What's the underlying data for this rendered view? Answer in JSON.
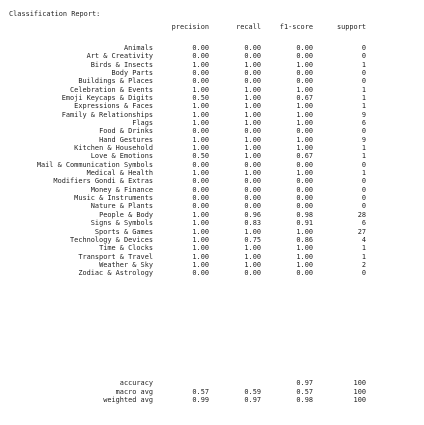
{
  "title": "Classification Report:",
  "columns": [
    "precision",
    "recall",
    "f1-score",
    "support"
  ],
  "rows": [
    {
      "label": "Animals",
      "precision": "0.00",
      "recall": "0.00",
      "f1": "0.00",
      "support": "0"
    },
    {
      "label": "Art & Creativity",
      "precision": "0.00",
      "recall": "0.00",
      "f1": "0.00",
      "support": "0"
    },
    {
      "label": "Birds & Insects",
      "precision": "1.00",
      "recall": "1.00",
      "f1": "1.00",
      "support": "1"
    },
    {
      "label": "Body Parts",
      "precision": "0.00",
      "recall": "0.00",
      "f1": "0.00",
      "support": "0"
    },
    {
      "label": "Buildings & Places",
      "precision": "0.00",
      "recall": "0.00",
      "f1": "0.00",
      "support": "0"
    },
    {
      "label": "Celebration & Events",
      "precision": "1.00",
      "recall": "1.00",
      "f1": "1.00",
      "support": "1"
    },
    {
      "label": "Emoji Keycaps & Digits",
      "precision": "0.50",
      "recall": "1.00",
      "f1": "0.67",
      "support": "1"
    },
    {
      "label": "Expressions & Faces",
      "precision": "1.00",
      "recall": "1.00",
      "f1": "1.00",
      "support": "1"
    },
    {
      "label": "Family & Relationships",
      "precision": "1.00",
      "recall": "1.00",
      "f1": "1.00",
      "support": "9"
    },
    {
      "label": "Flags",
      "precision": "1.00",
      "recall": "1.00",
      "f1": "1.00",
      "support": "6"
    },
    {
      "label": "Food & Drinks",
      "precision": "0.00",
      "recall": "0.00",
      "f1": "0.00",
      "support": "0"
    },
    {
      "label": "Hand Gestures",
      "precision": "1.00",
      "recall": "1.00",
      "f1": "1.00",
      "support": "9"
    },
    {
      "label": "Kitchen & Household",
      "precision": "1.00",
      "recall": "1.00",
      "f1": "1.00",
      "support": "1"
    },
    {
      "label": "Love & Emotions",
      "precision": "0.50",
      "recall": "1.00",
      "f1": "0.67",
      "support": "1"
    },
    {
      "label": "Mail & Communication Symbols",
      "precision": "0.00",
      "recall": "0.00",
      "f1": "0.00",
      "support": "0"
    },
    {
      "label": "Medical & Health",
      "precision": "1.00",
      "recall": "1.00",
      "f1": "1.00",
      "support": "1"
    },
    {
      "label": "Modifiers Gondi & Extras",
      "precision": "0.00",
      "recall": "0.00",
      "f1": "0.00",
      "support": "0"
    },
    {
      "label": "Money & Finance",
      "precision": "0.00",
      "recall": "0.00",
      "f1": "0.00",
      "support": "0"
    },
    {
      "label": "Music & Instruments",
      "precision": "0.00",
      "recall": "0.00",
      "f1": "0.00",
      "support": "0"
    },
    {
      "label": "Nature & Plants",
      "precision": "0.00",
      "recall": "0.00",
      "f1": "0.00",
      "support": "0"
    },
    {
      "label": "People & Body",
      "precision": "1.00",
      "recall": "0.96",
      "f1": "0.98",
      "support": "28"
    },
    {
      "label": "Signs & Symbols",
      "precision": "1.00",
      "recall": "0.83",
      "f1": "0.91",
      "support": "6"
    },
    {
      "label": "Sports & Games",
      "precision": "1.00",
      "recall": "1.00",
      "f1": "1.00",
      "support": "27"
    },
    {
      "label": "Technology & Devices",
      "precision": "1.00",
      "recall": "0.75",
      "f1": "0.86",
      "support": "4"
    },
    {
      "label": "Time & Clocks",
      "precision": "1.00",
      "recall": "1.00",
      "f1": "1.00",
      "support": "1"
    },
    {
      "label": "Transport & Travel",
      "precision": "1.00",
      "recall": "1.00",
      "f1": "1.00",
      "support": "1"
    },
    {
      "label": "Weather & Sky",
      "precision": "1.00",
      "recall": "1.00",
      "f1": "1.00",
      "support": "2"
    },
    {
      "label": "Zodiac & Astrology",
      "precision": "0.00",
      "recall": "0.00",
      "f1": "0.00",
      "support": "0"
    }
  ],
  "summary": [
    {
      "label": "accuracy",
      "precision": "",
      "recall": "",
      "f1": "0.97",
      "support": "100"
    },
    {
      "label": "macro avg",
      "precision": "0.57",
      "recall": "0.59",
      "f1": "0.57",
      "support": "100"
    },
    {
      "label": "weighted avg",
      "precision": "0.99",
      "recall": "0.97",
      "f1": "0.98",
      "support": "100"
    }
  ]
}
